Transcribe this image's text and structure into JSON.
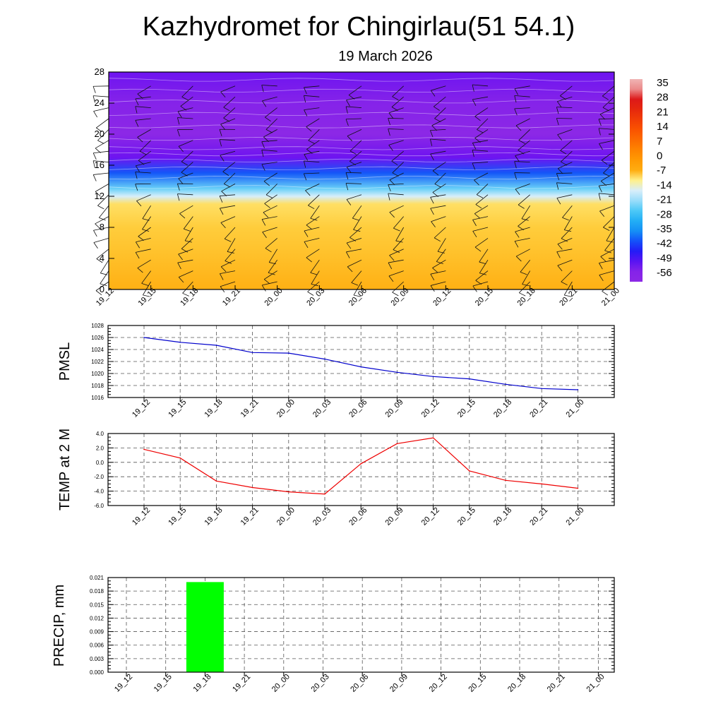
{
  "title": "Kazhydromet for Chingirlau(51 54.1)",
  "subtitle": "19 March 2026",
  "colors": {
    "pmsl_line": "#0000cc",
    "temp_line": "#ee0000",
    "precip_bar": "#00ff00",
    "grid": "#555555"
  },
  "chart_data": [
    {
      "type": "heatmap",
      "name": "temperature-cross-section",
      "x_labels": [
        "19_12",
        "19_15",
        "19_18",
        "19_21",
        "20_00",
        "20_03",
        "20_06",
        "20_09",
        "20_12",
        "20_15",
        "20_18",
        "20_21",
        "21_00"
      ],
      "y_ticks": [
        0,
        4,
        8,
        12,
        16,
        20,
        24,
        28
      ],
      "ylim": [
        0,
        28
      ],
      "colorbar": {
        "labels": [
          "35",
          "28",
          "21",
          "14",
          "7",
          "0",
          "-7",
          "-14",
          "-21",
          "-28",
          "-35",
          "-42",
          "-49",
          "-56"
        ]
      },
      "temperature_bands": [
        {
          "level": 0,
          "value": -7
        },
        {
          "level": 4,
          "value": -8
        },
        {
          "level": 8,
          "value": -9
        },
        {
          "level": 11,
          "value": -10
        },
        {
          "level": 12,
          "value": -16
        },
        {
          "level": 13,
          "value": -24
        },
        {
          "level": 15,
          "value": -40
        },
        {
          "level": 17,
          "value": -52
        },
        {
          "level": 20,
          "value": -57
        },
        {
          "level": 24,
          "value": -55
        },
        {
          "level": 28,
          "value": -52
        }
      ]
    },
    {
      "type": "line",
      "name": "pmsl",
      "ylabel": "PMSL",
      "x": [
        "19_12",
        "19_15",
        "19_18",
        "19_21",
        "20_00",
        "20_03",
        "20_06",
        "20_09",
        "20_12",
        "20_15",
        "20_18",
        "20_21",
        "21_00"
      ],
      "values": [
        1026.0,
        1025.2,
        1024.7,
        1023.5,
        1023.4,
        1022.4,
        1021.1,
        1020.2,
        1019.5,
        1019.1,
        1018.2,
        1017.5,
        1017.3
      ],
      "ylim": [
        1016,
        1028
      ],
      "y_ticks": [
        "1016",
        "1018",
        "1020",
        "1022",
        "1024",
        "1026",
        "1028"
      ]
    },
    {
      "type": "line",
      "name": "temp-2m",
      "ylabel": "TEMP at 2 M",
      "x": [
        "19_12",
        "19_15",
        "19_18",
        "19_21",
        "20_00",
        "20_03",
        "20_06",
        "20_09",
        "20_12",
        "20_15",
        "20_18",
        "20_21",
        "21_00"
      ],
      "values": [
        1.8,
        0.6,
        -2.6,
        -3.5,
        -4.1,
        -4.4,
        -0.2,
        2.6,
        3.4,
        -1.2,
        -2.5,
        -3.0,
        -3.6
      ],
      "ylim": [
        -6,
        4
      ],
      "y_ticks": [
        "-6.0",
        "-4.0",
        "-2.0",
        "0.0",
        "2.0",
        "4.0"
      ]
    },
    {
      "type": "bar",
      "name": "precip",
      "ylabel": "PRECIP, mm",
      "categories": [
        "19_12",
        "19_15",
        "19_18",
        "19_21",
        "20_00",
        "20_03",
        "20_06",
        "20_09",
        "20_12",
        "20_15",
        "20_18",
        "20_21",
        "21_00"
      ],
      "values": [
        0,
        0,
        0.02,
        0,
        0,
        0,
        0,
        0,
        0,
        0,
        0,
        0,
        0
      ],
      "ylim": [
        0,
        0.021
      ],
      "y_ticks": [
        "0.000",
        "0.003",
        "0.006",
        "0.009",
        "0.012",
        "0.015",
        "0.018",
        "0.021"
      ]
    }
  ]
}
